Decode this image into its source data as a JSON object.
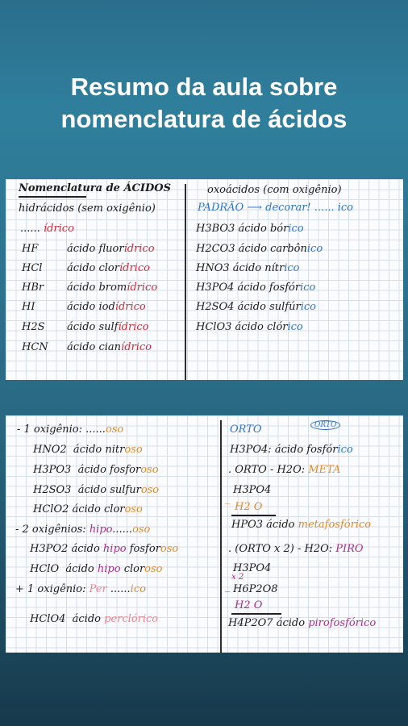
{
  "title": {
    "line1": "Resumo da aula sobre",
    "line2": "nomenclatura de ácidos"
  },
  "sheet1": {
    "left": {
      "heading": "Nomenclatura de ÁCIDOS",
      "subheading": "hidrácidos (sem oxigênio)",
      "rule": {
        "dots": "......",
        "suffix": "ídrico"
      },
      "rows": [
        {
          "formula": "HF",
          "acid": "ácido",
          "root": "fluor",
          "suffix": "ídrico"
        },
        {
          "formula": "HCl",
          "acid": "ácido",
          "root": "clor",
          "suffix": "ídrico"
        },
        {
          "formula": "HBr",
          "acid": "ácido",
          "root": "brom",
          "suffix": "ídrico"
        },
        {
          "formula": "HI",
          "acid": "ácido",
          "root": "iod",
          "suffix": "ídrico"
        },
        {
          "formula": "H2S",
          "acid": "ácido",
          "root": "sulf",
          "suffix": "ídrico"
        },
        {
          "formula": "HCN",
          "acid": "ácido",
          "root": "cian",
          "suffix": "ídrico"
        }
      ]
    },
    "right": {
      "heading": "oxoácidos (com oxigênio)",
      "padrao": {
        "label": "PADRÃO",
        "arrow": "⟶",
        "text": "decorar!",
        "dots": "......",
        "suffix": "ico"
      },
      "rows": [
        {
          "formula": "H3BO3",
          "acid": "ácido",
          "root": "bór",
          "suffix": "ico"
        },
        {
          "formula": "H2CO3",
          "acid": "ácido",
          "root": "carbôn",
          "suffix": "ico"
        },
        {
          "formula": "HNO3",
          "acid": "ácido",
          "root": "nítr",
          "suffix": "ico"
        },
        {
          "formula": "H3PO4",
          "acid": "ácido",
          "root": "fosfór",
          "suffix": "ico"
        },
        {
          "formula": "H2SO4",
          "acid": "ácido",
          "root": "sulfúr",
          "suffix": "ico"
        },
        {
          "formula": "HClO3",
          "acid": "ácido",
          "root": "clór",
          "suffix": "ico"
        }
      ]
    }
  },
  "sheet2": {
    "left": {
      "rule1": {
        "prefix": "- 1 oxigênio:",
        "dots": "......",
        "suffix": "oso"
      },
      "rows1": [
        {
          "formula": "HNO2",
          "acid": "ácido",
          "root": "nitr",
          "suffix": "oso"
        },
        {
          "formula": "H3PO3",
          "acid": "ácido",
          "root": "fosfor",
          "suffix": "oso"
        },
        {
          "formula": "H2SO3",
          "acid": "ácido",
          "root": "sulfur",
          "suffix": "oso"
        },
        {
          "formula": "HClO2",
          "acid": "ácido",
          "root": "clor",
          "suffix": "oso"
        }
      ],
      "rule2": {
        "prefix": "- 2 oxigênios:",
        "pre": "hipo",
        "dots": "......",
        "suffix": "oso"
      },
      "rows2": [
        {
          "formula": "H3PO2",
          "acid": "ácido",
          "pre": "hipo",
          "root": "fosfor",
          "suffix": "oso"
        },
        {
          "formula": "HClO",
          "acid": "ácido",
          "pre": "hipo",
          "root": "clor",
          "suffix": "oso"
        }
      ],
      "rule3": {
        "prefix": "+ 1 oxigênio:",
        "pre": "Per",
        "dots": "......",
        "suffix": "ico"
      },
      "row3": {
        "formula": "HClO4",
        "acid": "ácido",
        "pre": "per",
        "root": "clór",
        "suffix": "ico"
      }
    },
    "right": {
      "orto_label": "ORTO",
      "orto_tag": "ORTO",
      "orto_row": {
        "formula": "H3PO4:",
        "acid": "ácido",
        "root": "fosfór",
        "suffix": "ico"
      },
      "meta_rule": {
        "text": ". ORTO - H2O:",
        "label": "META"
      },
      "meta_calc": {
        "a": "H3PO4",
        "minus": "_",
        "b": "H2 O",
        "result": "HPO3",
        "acid": "ácido",
        "pre": "meta",
        "root": "fosfór",
        "suffix": "ico"
      },
      "piro_rule": {
        "text": ". (ORTO x 2) - H2O:",
        "label": "PIRO"
      },
      "piro_calc": {
        "a": "H3PO4",
        "times": "x 2",
        "minus": "_",
        "b": "H6P2O8",
        "c": "H2 O",
        "result": "H4P2O7",
        "acid": "ácido",
        "pre": "piro",
        "root": "fosfór",
        "suffix": "ico"
      }
    }
  }
}
